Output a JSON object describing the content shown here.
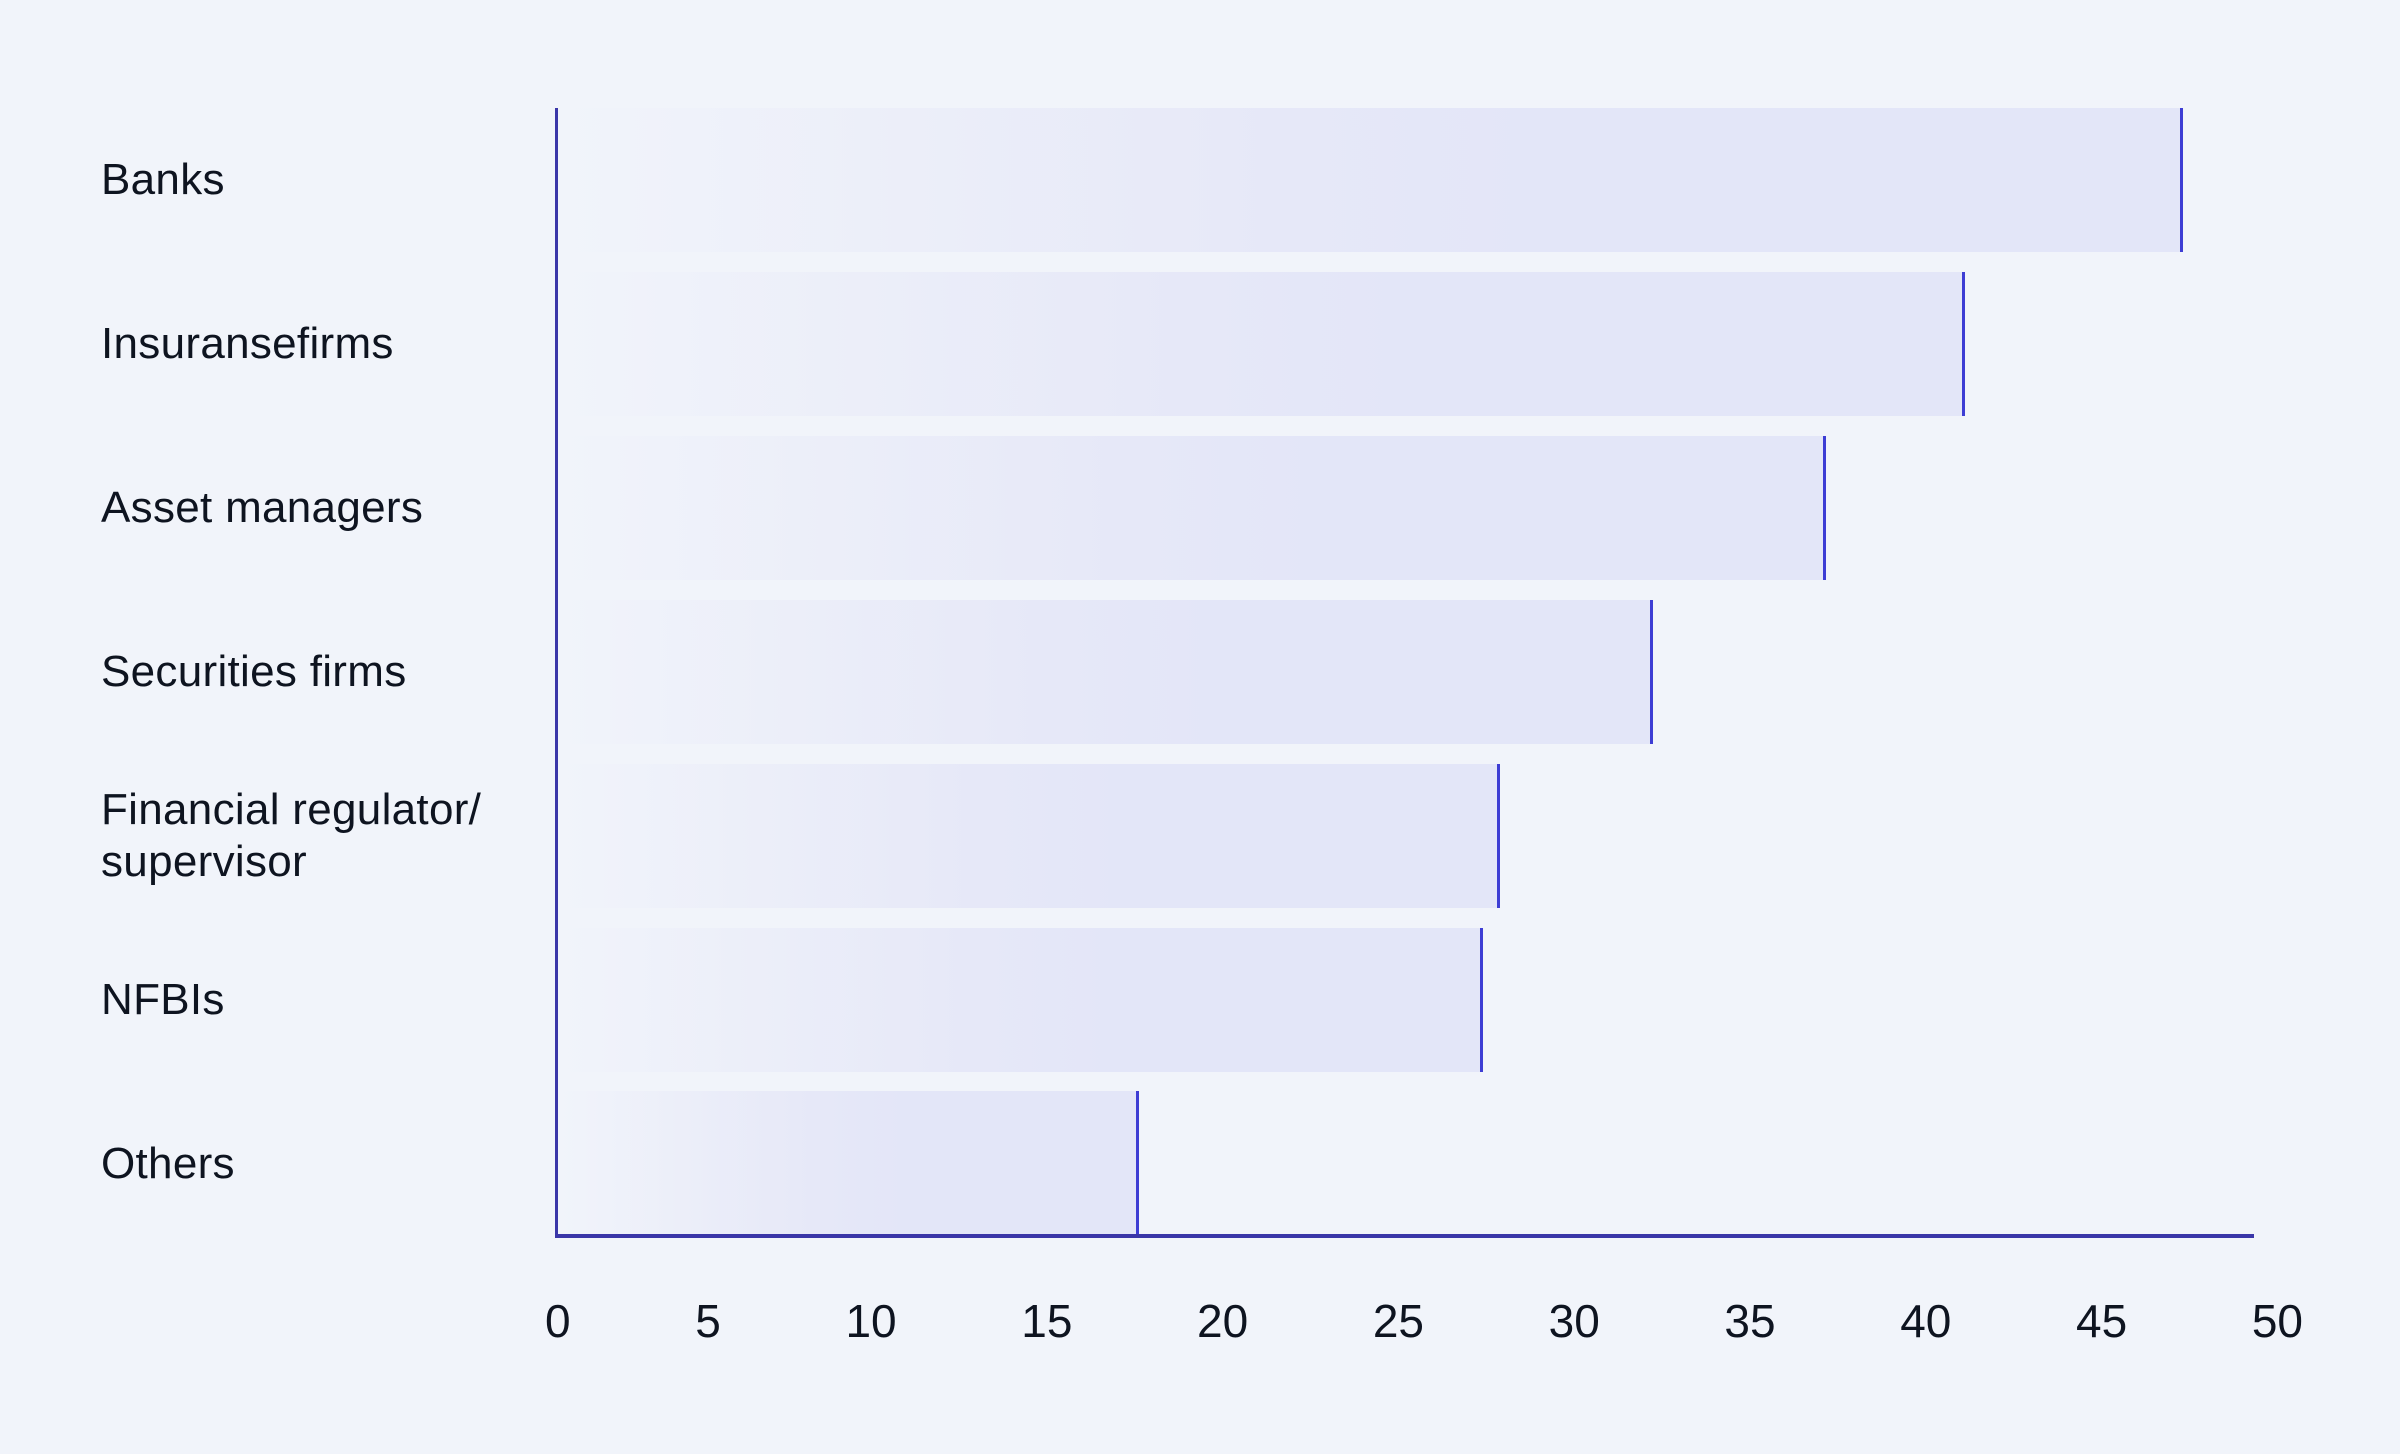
{
  "chart_data": {
    "type": "bar",
    "orientation": "horizontal",
    "title": "",
    "xlabel": "",
    "ylabel": "",
    "categories": [
      "Banks",
      "Insuransefirms",
      "Asset managers",
      "Securities firms",
      "Financial regulator/\nsupervisor",
      "NFBIs",
      "Others"
    ],
    "values": [
      47.9,
      41.5,
      37.4,
      32.3,
      27.8,
      27.3,
      17.2
    ],
    "xlim": [
      0,
      50
    ],
    "x_ticks": [
      "0",
      "5",
      "10",
      "15",
      "20",
      "25",
      "30",
      "35",
      "40",
      "45",
      "50"
    ],
    "grid": false,
    "legend": null,
    "colors": {
      "background": "#f1f4fa",
      "bar_fill": "#e3e6f8",
      "bar_edge": "#3d3dd4",
      "axis": "#3a36a8",
      "text": "#0e1420"
    }
  }
}
